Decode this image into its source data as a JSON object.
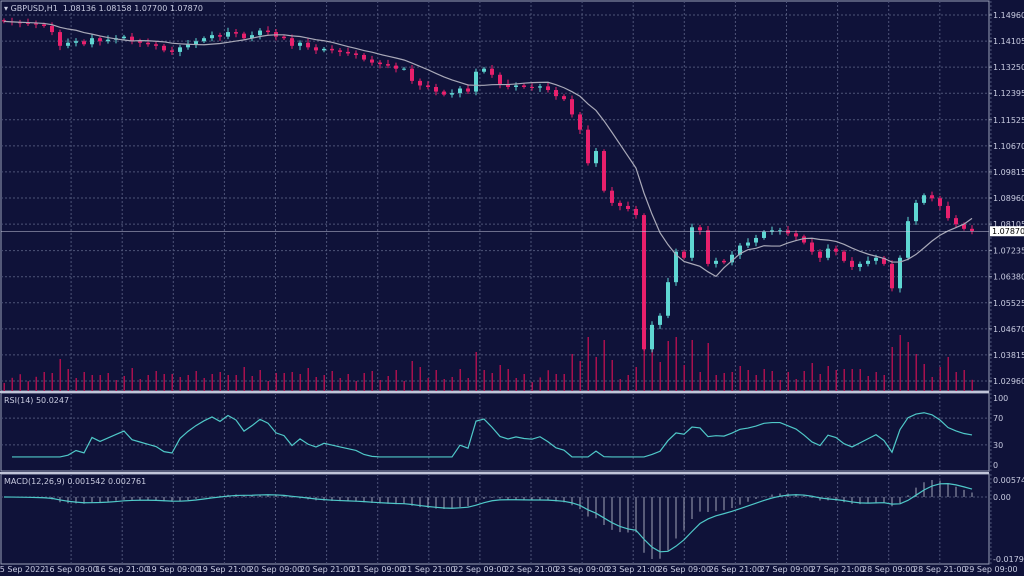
{
  "header": {
    "symbol": "GBPUSD,H1",
    "open": "1.08136",
    "high": "1.08158",
    "low": "1.07700",
    "close": "1.07870"
  },
  "rsi": {
    "label": "RSI(14)",
    "value": "50.0247",
    "ticks": [
      "100",
      "70",
      "30",
      "0"
    ]
  },
  "macd": {
    "label": "MACD(12,26,9)",
    "main": "0.001542",
    "signal": "0.002761",
    "ticks": [
      "0.005749",
      "0.00",
      "-0.017915"
    ]
  },
  "colors": {
    "background": "#0f1239",
    "bull": "#5fd6d2",
    "bear": "#e8206c",
    "volume": "#a8104e",
    "ma": "#a9a9b8",
    "rsi": "#4fc8c8",
    "grid": "#4e5478"
  },
  "chart_data": {
    "type": "candlestick",
    "price_ticks": [
      "1.14960",
      "1.14105",
      "1.13250",
      "1.12395",
      "1.11525",
      "1.10670",
      "1.09815",
      "1.08960",
      "1.08105",
      "1.07235",
      "1.06380",
      "1.05525",
      "1.04670",
      "1.03815",
      "1.02960"
    ],
    "ylim": [
      1.0296,
      1.1496
    ],
    "current_price": "1.07870",
    "x_ticks": [
      "15 Sep 2022",
      "16 Sep 09:00",
      "16 Sep 21:00",
      "19 Sep 09:00",
      "19 Sep 21:00",
      "20 Sep 09:00",
      "20 Sep 21:00",
      "21 Sep 09:00",
      "21 Sep 21:00",
      "22 Sep 09:00",
      "22 Sep 21:00",
      "23 Sep 09:00",
      "23 Sep 21:00",
      "26 Sep 09:00",
      "26 Sep 21:00",
      "27 Sep 09:00",
      "27 Sep 21:00",
      "28 Sep 09:00",
      "28 Sep 21:00",
      "29 Sep 09:00"
    ],
    "closes": [
      1.1475,
      1.1472,
      1.147,
      1.1468,
      1.1465,
      1.146,
      1.144,
      1.1395,
      1.1405,
      1.141,
      1.14,
      1.142,
      1.141,
      1.1415,
      1.142,
      1.1425,
      1.141,
      1.1405,
      1.14,
      1.1395,
      1.138,
      1.1375,
      1.139,
      1.14,
      1.141,
      1.142,
      1.143,
      1.1425,
      1.144,
      1.1435,
      1.142,
      1.143,
      1.1445,
      1.144,
      1.1425,
      1.142,
      1.1395,
      1.1405,
      1.139,
      1.138,
      1.1385,
      1.138,
      1.1375,
      1.137,
      1.1365,
      1.135,
      1.134,
      1.1335,
      1.133,
      1.132,
      1.132,
      1.128,
      1.1265,
      1.126,
      1.1245,
      1.1235,
      1.124,
      1.1255,
      1.1245,
      1.131,
      1.132,
      1.13,
      1.127,
      1.126,
      1.1265,
      1.126,
      1.1258,
      1.1262,
      1.125,
      1.123,
      1.122,
      1.117,
      1.112,
      1.101,
      1.105,
      1.092,
      1.088,
      1.087,
      1.086,
      1.084,
      1.04,
      1.048,
      1.051,
      1.062,
      1.072,
      1.07,
      1.08,
      1.079,
      1.068,
      1.069,
      1.0685,
      1.071,
      1.074,
      1.075,
      1.0765,
      1.0785,
      1.079,
      1.079,
      1.078,
      1.077,
      1.075,
      1.072,
      1.07,
      1.073,
      1.072,
      1.069,
      1.067,
      1.068,
      1.069,
      1.07,
      1.068,
      1.06,
      1.07,
      1.082,
      1.088,
      1.0905,
      1.0895,
      1.087,
      1.083,
      1.081,
      1.0795,
      1.0787
    ]
  }
}
